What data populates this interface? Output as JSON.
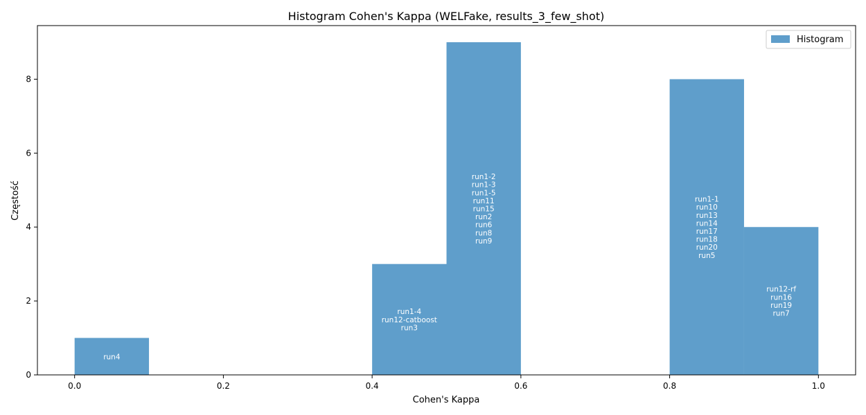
{
  "chart_data": {
    "type": "bar",
    "title": "Histogram Cohen's Kappa (WELFake, results_3_few_shot)",
    "xlabel": "Cohen's Kappa",
    "ylabel": "Częstość",
    "xlim": [
      -0.05,
      1.05
    ],
    "ylim": [
      0,
      9.45
    ],
    "x_ticks": [
      0.0,
      0.2,
      0.4,
      0.6,
      0.8,
      1.0
    ],
    "x_tick_labels": [
      "0.0",
      "0.2",
      "0.4",
      "0.6",
      "0.8",
      "1.0"
    ],
    "y_ticks": [
      0,
      2,
      4,
      6,
      8
    ],
    "y_tick_labels": [
      "0",
      "2",
      "4",
      "6",
      "8"
    ],
    "grid": false,
    "legend_position": "top-right",
    "bar_color": "#5f9ecb",
    "series": [
      {
        "name": "Histogram",
        "bins": [
          {
            "start": 0.0,
            "end": 0.1,
            "count": 1,
            "labels": [
              "run4"
            ]
          },
          {
            "start": 0.4,
            "end": 0.5,
            "count": 3,
            "labels": [
              "run1-4",
              "run12-catboost",
              "run3"
            ]
          },
          {
            "start": 0.5,
            "end": 0.6,
            "count": 9,
            "labels": [
              "run1-2",
              "run1-3",
              "run1-5",
              "run11",
              "run15",
              "run2",
              "run6",
              "run8",
              "run9"
            ]
          },
          {
            "start": 0.8,
            "end": 0.9,
            "count": 8,
            "labels": [
              "run1-1",
              "run10",
              "run13",
              "run14",
              "run17",
              "run18",
              "run20",
              "run5"
            ]
          },
          {
            "start": 0.9,
            "end": 1.0,
            "count": 4,
            "labels": [
              "run12-rf",
              "run16",
              "run19",
              "run7"
            ]
          }
        ]
      }
    ]
  }
}
